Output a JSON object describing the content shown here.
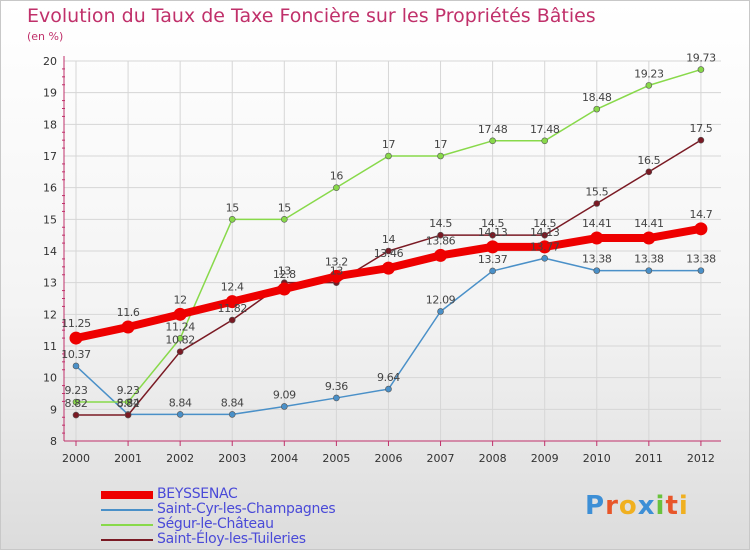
{
  "header": {
    "title": "Evolution du Taux de Taxe Foncière sur les Propriétés Bâties",
    "unit": "(en %)"
  },
  "colors": {
    "title": "#c0306a",
    "axis": "#c0306a",
    "grid": "#d6d6d6",
    "tick_text": "#333333",
    "label_text": "#444444"
  },
  "chart_data": {
    "type": "line",
    "title": "Evolution du Taux de Taxe Foncière sur les Propriétés Bâties",
    "ylabel": "(en %)",
    "xlabel": "",
    "ylim": [
      8,
      20
    ],
    "yticks": [
      "8",
      "9",
      "10",
      "11",
      "12",
      "13",
      "14",
      "15",
      "16",
      "17",
      "18",
      "19",
      "20"
    ],
    "x": [
      "2000",
      "2001",
      "2002",
      "2003",
      "2004",
      "2005",
      "2006",
      "2007",
      "2008",
      "2009",
      "2010",
      "2011",
      "2012"
    ],
    "grid": true,
    "legend_position": "bottom-left",
    "series": [
      {
        "name": "Saint-Cyr-les-Champagnes",
        "color": "#4a90c8",
        "thick": false,
        "values": [
          10.37,
          8.84,
          8.84,
          8.84,
          9.09,
          9.36,
          9.64,
          12.09,
          13.37,
          13.77,
          13.38,
          13.38,
          13.38
        ],
        "labels": [
          "10.37",
          "8.84",
          "8.84",
          "8.84",
          "9.09",
          "9.36",
          "9.64",
          "12.09",
          "13.37",
          "13.77",
          "13.38",
          "13.38",
          "13.38"
        ]
      },
      {
        "name": "Ségur-le-Château",
        "color": "#88d94a",
        "thick": false,
        "values": [
          9.23,
          9.23,
          11.24,
          15,
          15,
          16,
          17,
          17,
          17.48,
          17.48,
          18.48,
          19.23,
          19.73
        ],
        "labels": [
          "9.23",
          "9.23",
          "11.24",
          "15",
          "15",
          "16",
          "17",
          "17",
          "17.48",
          "17.48",
          "18.48",
          "19.23",
          "19.73"
        ]
      },
      {
        "name": "Saint-Éloy-les-Tuileries",
        "color": "#7a1a24",
        "thick": false,
        "values": [
          8.82,
          8.82,
          10.82,
          11.82,
          13,
          13,
          14,
          14.5,
          14.5,
          14.5,
          15.5,
          16.5,
          17.5
        ],
        "labels": [
          "8.82",
          "8.82",
          "10.82",
          "11.82",
          "13",
          "13",
          "14",
          "14.5",
          "14.5",
          "14.5",
          "15.5",
          "16.5",
          "17.5"
        ]
      },
      {
        "name": "BEYSSENAC",
        "color": "#ee0000",
        "thick": true,
        "values": [
          11.25,
          11.6,
          12,
          12.4,
          12.8,
          13.2,
          13.46,
          13.86,
          14.13,
          14.13,
          14.41,
          14.41,
          14.7
        ],
        "labels": [
          "11.25",
          "11.6",
          "12",
          "12.4",
          "12.8",
          "13.2",
          "13.46",
          "13.86",
          "14.13",
          "14.13",
          "14.41",
          "14.41",
          "14.7"
        ]
      }
    ]
  },
  "legend": {
    "items": [
      {
        "label": "BEYSSENAC",
        "color": "#ee0000",
        "thick": true
      },
      {
        "label": "Saint-Cyr-les-Champagnes",
        "color": "#4a90c8",
        "thick": false
      },
      {
        "label": "Ségur-le-Château",
        "color": "#88d94a",
        "thick": false
      },
      {
        "label": "Saint-Éloy-les-Tuileries",
        "color": "#7a1a24",
        "thick": false
      }
    ]
  },
  "logo": {
    "letters": [
      "P",
      "r",
      "o",
      "x",
      "i",
      "t",
      "i"
    ],
    "colors": [
      "#3d8fd6",
      "#e8562a",
      "#f0b020",
      "#3d8fd6",
      "#6ac23c",
      "#e8562a",
      "#f0b020"
    ]
  }
}
